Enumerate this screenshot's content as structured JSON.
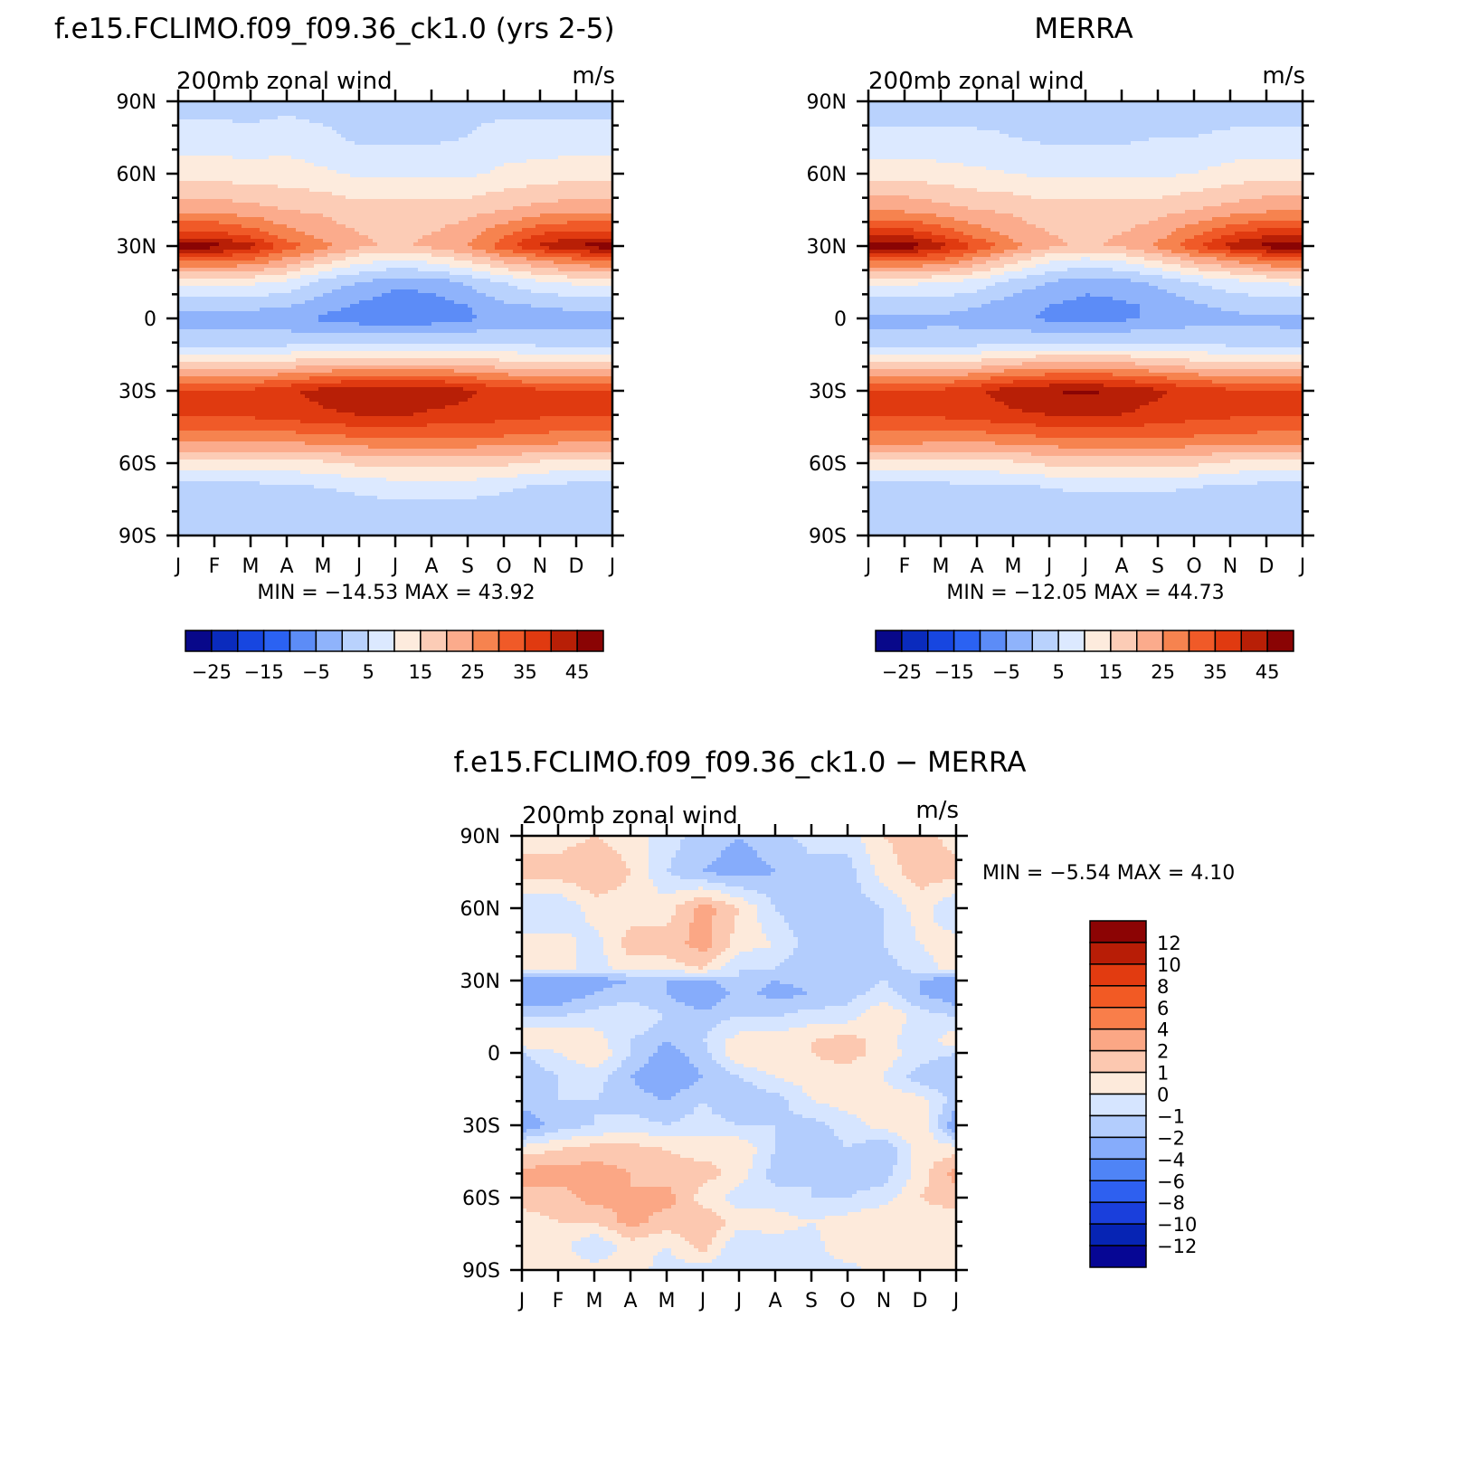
{
  "colors": {
    "abs_scale": [
      "#08088a",
      "#0a2bbd",
      "#1746e0",
      "#2b62f2",
      "#5c8cf7",
      "#8fb3fb",
      "#b9d2fd",
      "#dce9ff",
      "#fdebdd",
      "#fcccb6",
      "#fbab8c",
      "#f6834f",
      "#f05a28",
      "#e03a10",
      "#b81f06",
      "#8a0404"
    ],
    "diff_scale": [
      "#060694",
      "#0624b4",
      "#1a3fdc",
      "#2e60f0",
      "#4f84f6",
      "#86acfb",
      "#b3cdfd",
      "#d6e5ff",
      "#fdeadb",
      "#fcc8b0",
      "#fba785",
      "#f97e4a",
      "#f25a24",
      "#e23b10",
      "#b81d06",
      "#8c0404"
    ]
  },
  "chart_data": [
    {
      "type": "heatmap",
      "title": "f.e15.FCLIMO.f09_f09.36_ck1.0 (yrs 2-5)",
      "subtitle_left": "200mb zonal wind",
      "subtitle_right": "m/s",
      "x_ticks": [
        "J",
        "F",
        "M",
        "A",
        "M",
        "J",
        "J",
        "A",
        "S",
        "O",
        "N",
        "D",
        "J"
      ],
      "y_ticks": [
        "90N",
        "60N",
        "30N",
        "0",
        "30S",
        "60S",
        "90S"
      ],
      "ylim": [
        -90,
        90
      ],
      "stats": "MIN = −14.53  MAX =   43.92",
      "colorbar_labels": [
        "−25",
        "−15",
        "−5",
        "5",
        "15",
        "25",
        "35",
        "45"
      ],
      "field": {
        "lat_nodes": [
          90,
          75,
          60,
          45,
          35,
          30,
          25,
          15,
          5,
          0,
          -10,
          -20,
          -30,
          -40,
          -50,
          -60,
          -70,
          -80,
          -90
        ],
        "months": [
          0,
          1,
          2,
          3,
          4,
          5,
          6,
          7,
          8,
          9,
          10,
          11,
          12
        ],
        "profiles": [
          [
            -2,
            2,
            8,
            18,
            32,
            43,
            28,
            6,
            -4,
            -7,
            -3,
            12,
            30,
            30,
            22,
            8,
            -2,
            -4,
            -2
          ],
          [
            -2,
            2,
            8,
            18,
            32,
            42,
            28,
            6,
            -4,
            -7,
            -3,
            12,
            30,
            30,
            22,
            8,
            -2,
            -4,
            -2
          ],
          [
            -3,
            2,
            7,
            17,
            28,
            37,
            26,
            6,
            -4,
            -7,
            -3,
            13,
            31,
            31,
            22,
            8,
            -2,
            -4,
            -2
          ],
          [
            -2,
            3,
            7,
            15,
            22,
            28,
            20,
            4,
            -5,
            -8,
            -2,
            14,
            34,
            32,
            22,
            8,
            -1,
            -3,
            -2
          ],
          [
            -2,
            1,
            6,
            14,
            18,
            22,
            14,
            -2,
            -8,
            -11,
            -1,
            16,
            37,
            34,
            23,
            9,
            0,
            -3,
            -2
          ],
          [
            -1,
            -1,
            4,
            12,
            15,
            16,
            8,
            -5,
            -11,
            -13,
            0,
            17,
            39,
            35,
            24,
            11,
            1,
            -2,
            -2
          ],
          [
            -1,
            -1,
            4,
            12,
            14,
            14,
            6,
            -8,
            -14,
            -14,
            0,
            17,
            40,
            36,
            25,
            12,
            2,
            -2,
            -2
          ],
          [
            -1,
            -1,
            4,
            12,
            15,
            16,
            8,
            -8,
            -13,
            -13,
            0,
            17,
            39,
            34,
            24,
            12,
            2,
            -2,
            -2
          ],
          [
            -1,
            0,
            4,
            13,
            18,
            20,
            12,
            -4,
            -10,
            -11,
            0,
            16,
            36,
            33,
            24,
            12,
            2,
            -2,
            -2
          ],
          [
            -2,
            2,
            6,
            15,
            24,
            28,
            18,
            0,
            -6,
            -8,
            -1,
            14,
            33,
            32,
            24,
            11,
            1,
            -3,
            -2
          ],
          [
            -2,
            2,
            7,
            17,
            30,
            36,
            22,
            4,
            -5,
            -7,
            -2,
            13,
            31,
            31,
            23,
            9,
            -1,
            -3,
            -2
          ],
          [
            -2,
            2,
            8,
            18,
            32,
            41,
            26,
            6,
            -4,
            -7,
            -3,
            12,
            30,
            30,
            22,
            8,
            -2,
            -4,
            -2
          ],
          [
            -2,
            2,
            8,
            18,
            32,
            43,
            28,
            6,
            -4,
            -7,
            -3,
            12,
            30,
            30,
            22,
            8,
            -2,
            -4,
            -2
          ]
        ]
      }
    },
    {
      "type": "heatmap",
      "title": "MERRA",
      "subtitle_left": "200mb zonal wind",
      "subtitle_right": "m/s",
      "x_ticks": [
        "J",
        "F",
        "M",
        "A",
        "M",
        "J",
        "J",
        "A",
        "S",
        "O",
        "N",
        "D",
        "J"
      ],
      "y_ticks": [
        "90N",
        "60N",
        "30N",
        "0",
        "30S",
        "60S",
        "90S"
      ],
      "ylim": [
        -90,
        90
      ],
      "stats": "MIN = −12.05  MAX =   44.73",
      "colorbar_labels": [
        "−25",
        "−15",
        "−5",
        "5",
        "15",
        "25",
        "35",
        "45"
      ],
      "field": {
        "lat_nodes": [
          90,
          75,
          60,
          45,
          35,
          30,
          25,
          15,
          5,
          0,
          -10,
          -20,
          -30,
          -40,
          -50,
          -60,
          -70,
          -80,
          -90
        ],
        "months": [
          0,
          1,
          2,
          3,
          4,
          5,
          6,
          7,
          8,
          9,
          10,
          11,
          12
        ],
        "profiles": [
          [
            -3,
            1,
            8,
            19,
            34,
            44,
            28,
            6,
            -3,
            -6,
            -4,
            12,
            30,
            30,
            23,
            8,
            -2,
            -4,
            -3
          ],
          [
            -3,
            1,
            8,
            19,
            34,
            44,
            28,
            6,
            -3,
            -6,
            -4,
            12,
            30,
            30,
            23,
            8,
            -2,
            -4,
            -3
          ],
          [
            -3,
            1,
            7,
            17,
            29,
            37,
            26,
            5,
            -3,
            -6,
            -3,
            13,
            31,
            31,
            22,
            8,
            -2,
            -4,
            -3
          ],
          [
            -3,
            1,
            6,
            15,
            23,
            29,
            20,
            3,
            -5,
            -7,
            -2,
            14,
            34,
            32,
            22,
            8,
            -1,
            -4,
            -3
          ],
          [
            -2,
            0,
            5,
            14,
            18,
            22,
            13,
            -2,
            -8,
            -9,
            -1,
            17,
            38,
            34,
            23,
            9,
            -1,
            -3,
            -3
          ],
          [
            -2,
            -1,
            4,
            12,
            15,
            16,
            7,
            -5,
            -10,
            -11,
            0,
            18,
            40,
            35,
            24,
            11,
            0,
            -3,
            -3
          ],
          [
            -2,
            -1,
            4,
            12,
            14,
            14,
            5,
            -8,
            -12,
            -12,
            0,
            18,
            41,
            36,
            25,
            12,
            1,
            -3,
            -3
          ],
          [
            -2,
            -1,
            4,
            12,
            15,
            16,
            7,
            -7,
            -11,
            -11,
            0,
            18,
            39,
            35,
            25,
            12,
            1,
            -3,
            -3
          ],
          [
            -2,
            0,
            4,
            13,
            18,
            21,
            12,
            -4,
            -9,
            -9,
            0,
            16,
            36,
            33,
            25,
            12,
            1,
            -3,
            -3
          ],
          [
            -3,
            0,
            5,
            15,
            24,
            29,
            18,
            0,
            -6,
            -7,
            -1,
            14,
            33,
            32,
            24,
            11,
            0,
            -4,
            -3
          ],
          [
            -3,
            1,
            7,
            17,
            30,
            37,
            22,
            3,
            -4,
            -6,
            -2,
            13,
            31,
            31,
            23,
            9,
            -1,
            -4,
            -3
          ],
          [
            -3,
            1,
            8,
            19,
            33,
            42,
            27,
            5,
            -3,
            -6,
            -3,
            12,
            30,
            30,
            23,
            8,
            -2,
            -4,
            -3
          ],
          [
            -3,
            1,
            8,
            19,
            34,
            44,
            28,
            6,
            -3,
            -6,
            -4,
            12,
            30,
            30,
            23,
            8,
            -2,
            -4,
            -3
          ]
        ]
      }
    },
    {
      "type": "heatmap",
      "title": "f.e15.FCLIMO.f09_f09.36_ck1.0 − MERRA",
      "subtitle_left": "200mb zonal wind",
      "subtitle_right": "m/s",
      "x_ticks": [
        "J",
        "F",
        "M",
        "A",
        "M",
        "J",
        "J",
        "A",
        "S",
        "O",
        "N",
        "D",
        "J"
      ],
      "y_ticks": [
        "90N",
        "60N",
        "30N",
        "0",
        "30S",
        "60S",
        "90S"
      ],
      "ylim": [
        -90,
        90
      ],
      "stats": "MIN =    −5.54  MAX =     4.10",
      "colorbar_labels": [
        "12",
        "10",
        "8",
        "6",
        "4",
        "2",
        "1",
        "0",
        "−1",
        "−2",
        "−4",
        "−6",
        "−8",
        "−10",
        "−12"
      ],
      "field": {
        "lat_nodes": [
          90,
          75,
          60,
          45,
          35,
          30,
          25,
          15,
          5,
          0,
          -10,
          -20,
          -30,
          -40,
          -50,
          -60,
          -70,
          -80,
          -90
        ],
        "months": [
          0,
          1,
          2,
          3,
          4,
          5,
          6,
          7,
          8,
          9,
          10,
          11,
          12
        ],
        "profiles": [
          [
            0.5,
            1.5,
            -1,
            0.5,
            0.5,
            -3,
            -3,
            -1,
            1,
            -1,
            -2,
            -1.5,
            -3,
            0.5,
            2.5,
            1.5,
            0.5,
            1,
            0.5
          ],
          [
            0.5,
            1.5,
            -1,
            0.5,
            0.5,
            -3,
            -3,
            -1,
            1,
            0,
            -1,
            -1,
            -1.5,
            1,
            2.5,
            1.5,
            1,
            0.5,
            0.5
          ],
          [
            1,
            2,
            0.5,
            -0.5,
            -0.5,
            -2.5,
            -2,
            -0.5,
            0.5,
            1,
            -0.5,
            -1,
            -1,
            1.5,
            2.5,
            2.5,
            1,
            -1,
            0.5
          ],
          [
            0.5,
            1,
            0.5,
            1.5,
            0.5,
            -2,
            -1.5,
            0,
            -1,
            -1,
            -2,
            -1.5,
            -0.5,
            1.5,
            2,
            2,
            2.5,
            0.5,
            0.5
          ],
          [
            -0.5,
            -1,
            0.5,
            1.5,
            0.5,
            -2,
            -2,
            -1,
            -2,
            -2.5,
            -3,
            -2,
            -1,
            1,
            1.5,
            2.5,
            1.5,
            0,
            -0.5
          ],
          [
            -1.5,
            -2,
            2.5,
            2.5,
            1,
            -2.5,
            -3.5,
            -1.5,
            -1,
            -1.5,
            -2,
            -1,
            -0.5,
            0.5,
            1.5,
            0.5,
            2,
            1.5,
            -0.5
          ],
          [
            -2,
            -2.5,
            1,
            0.5,
            -1,
            -1,
            -1.5,
            -1,
            0.5,
            1,
            -1,
            -2,
            -1,
            1,
            0.5,
            -0.5,
            0.5,
            -1,
            -0.5
          ],
          [
            -1.5,
            -2,
            -1,
            0,
            -1,
            -2,
            -2.5,
            -1,
            0.5,
            1,
            0,
            -1.5,
            -1,
            -1,
            -1.5,
            -0.5,
            0.5,
            -0.5,
            -0.5
          ],
          [
            -0.5,
            -1.5,
            -2,
            -1.5,
            -2,
            -1.5,
            -2,
            -0.5,
            1,
            1,
            0.5,
            0,
            -1.5,
            -2,
            -1,
            -1,
            0,
            -0.5,
            -0.5
          ],
          [
            -0.5,
            -1.5,
            -1.5,
            -1,
            -2,
            -1.5,
            -1.5,
            -0.5,
            1.5,
            1.5,
            0.5,
            0.5,
            -0.5,
            -1,
            -1.5,
            -1,
            0.5,
            1,
            -0.5
          ],
          [
            1,
            0.5,
            -1,
            -1,
            -1.5,
            -1,
            -0.5,
            1,
            0.5,
            0.5,
            0,
            0.5,
            0.5,
            -2,
            -1.5,
            -0.5,
            1,
            0.5,
            0.5
          ],
          [
            1.5,
            1.5,
            0.5,
            0,
            -0.5,
            -2,
            -2,
            -0.5,
            -1,
            -0.5,
            -1.5,
            0.5,
            1,
            0.5,
            0.5,
            1,
            0.5,
            0.5,
            0.5
          ],
          [
            0.5,
            1.5,
            -1,
            0.5,
            0.5,
            -3,
            -3,
            -1,
            1,
            -1,
            -2,
            -1.5,
            -3,
            0.5,
            2.5,
            1.5,
            0.5,
            1,
            0.5
          ]
        ]
      }
    }
  ]
}
